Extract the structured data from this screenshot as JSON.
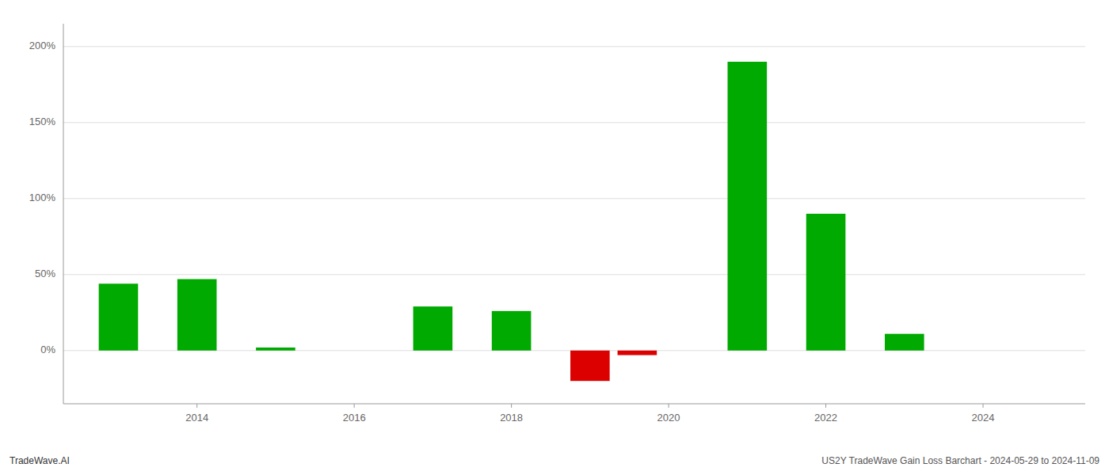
{
  "chart_data": {
    "type": "bar",
    "x": [
      2013,
      2014,
      2015,
      2016,
      2017,
      2018,
      2019,
      2019.6,
      2021,
      2022,
      2023,
      2024
    ],
    "values": [
      44.0,
      47.0,
      2.0,
      0.0,
      29.0,
      26.0,
      -20.0,
      -3.0,
      190.0,
      90.0,
      11.0,
      0.0
    ],
    "colors": [
      "#00aa00",
      "#00aa00",
      "#00aa00",
      "#00aa00",
      "#00aa00",
      "#00aa00",
      "#dd0000",
      "#dd0000",
      "#00aa00",
      "#00aa00",
      "#00aa00",
      "#00aa00"
    ],
    "xlim": [
      2012.3,
      2025.3
    ],
    "xticks": [
      2014,
      2016,
      2018,
      2020,
      2022,
      2024
    ],
    "ylim": [
      -35,
      215
    ],
    "yticks": [
      {
        "value": 0,
        "label": "0%"
      },
      {
        "value": 50,
        "label": "50%"
      },
      {
        "value": 100,
        "label": "100%"
      },
      {
        "value": 150,
        "label": "150%"
      },
      {
        "value": 200,
        "label": "200%"
      }
    ],
    "grid": true,
    "annotations": [
      "TradeWave.AI",
      "US2Y TradeWave Gain Loss Barchart - 2024-05-29 to 2024-11-09"
    ]
  }
}
